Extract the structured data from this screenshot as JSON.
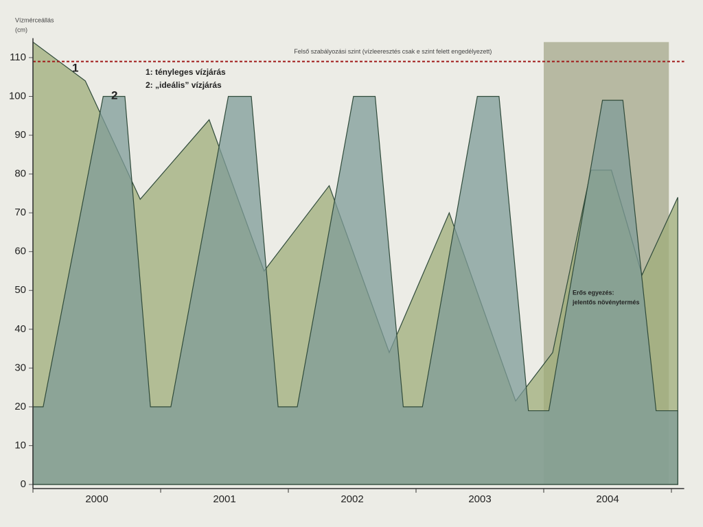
{
  "chart_data": {
    "type": "area",
    "y_label": [
      "Vízmérceállás",
      "(cm)"
    ],
    "xlim": [
      2000,
      2005.1
    ],
    "xticks": [
      {
        "value": 2000.5,
        "label": "2000"
      },
      {
        "value": 2001.5,
        "label": "2001"
      },
      {
        "value": 2002.5,
        "label": "2002"
      },
      {
        "value": 2003.5,
        "label": "2003"
      },
      {
        "value": 2004.5,
        "label": "2004"
      }
    ],
    "ylim": [
      0,
      115
    ],
    "yticks": [
      0,
      10,
      20,
      30,
      40,
      50,
      60,
      70,
      80,
      90,
      100,
      110
    ],
    "series": [
      {
        "name": "1: tényleges vízjárás",
        "marker_label": "1",
        "color": "#9fae7a",
        "x": [
          2000.0,
          2000.41,
          2000.84,
          2001.38,
          2001.81,
          2002.32,
          2002.79,
          2003.26,
          2003.78,
          2004.07,
          2004.37,
          2004.53,
          2004.77,
          2005.05
        ],
        "values": [
          114,
          104,
          73.5,
          94,
          55,
          77,
          34,
          70,
          21.5,
          34,
          81,
          81,
          54,
          74
        ]
      },
      {
        "name": "2: „ideális” vízjárás",
        "marker_label": "2",
        "color": "#7f9c98",
        "x": [
          2000.0,
          2000.08,
          2000.55,
          2000.72,
          2000.92,
          2001.08,
          2001.53,
          2001.71,
          2001.92,
          2002.07,
          2002.51,
          2002.68,
          2002.9,
          2003.05,
          2003.48,
          2003.65,
          2003.88,
          2004.04,
          2004.46,
          2004.62,
          2004.88,
          2005.05
        ],
        "values": [
          20,
          20,
          100,
          100,
          20,
          20,
          100,
          100,
          20,
          20,
          100,
          100,
          20,
          20,
          100,
          100,
          19,
          19,
          99,
          99,
          19,
          19
        ]
      }
    ],
    "threshold": {
      "value": 109,
      "label": "Felső szabályozási szint (vízleeresztés csak e szint felett engedélyezett)",
      "color": "#a01818"
    },
    "highlight": {
      "x": [
        2004.0,
        2004.98
      ],
      "top": 114,
      "color": "#8c8f6a",
      "text": [
        "Erős egyezés:",
        "jelentős növénytermés"
      ]
    }
  }
}
